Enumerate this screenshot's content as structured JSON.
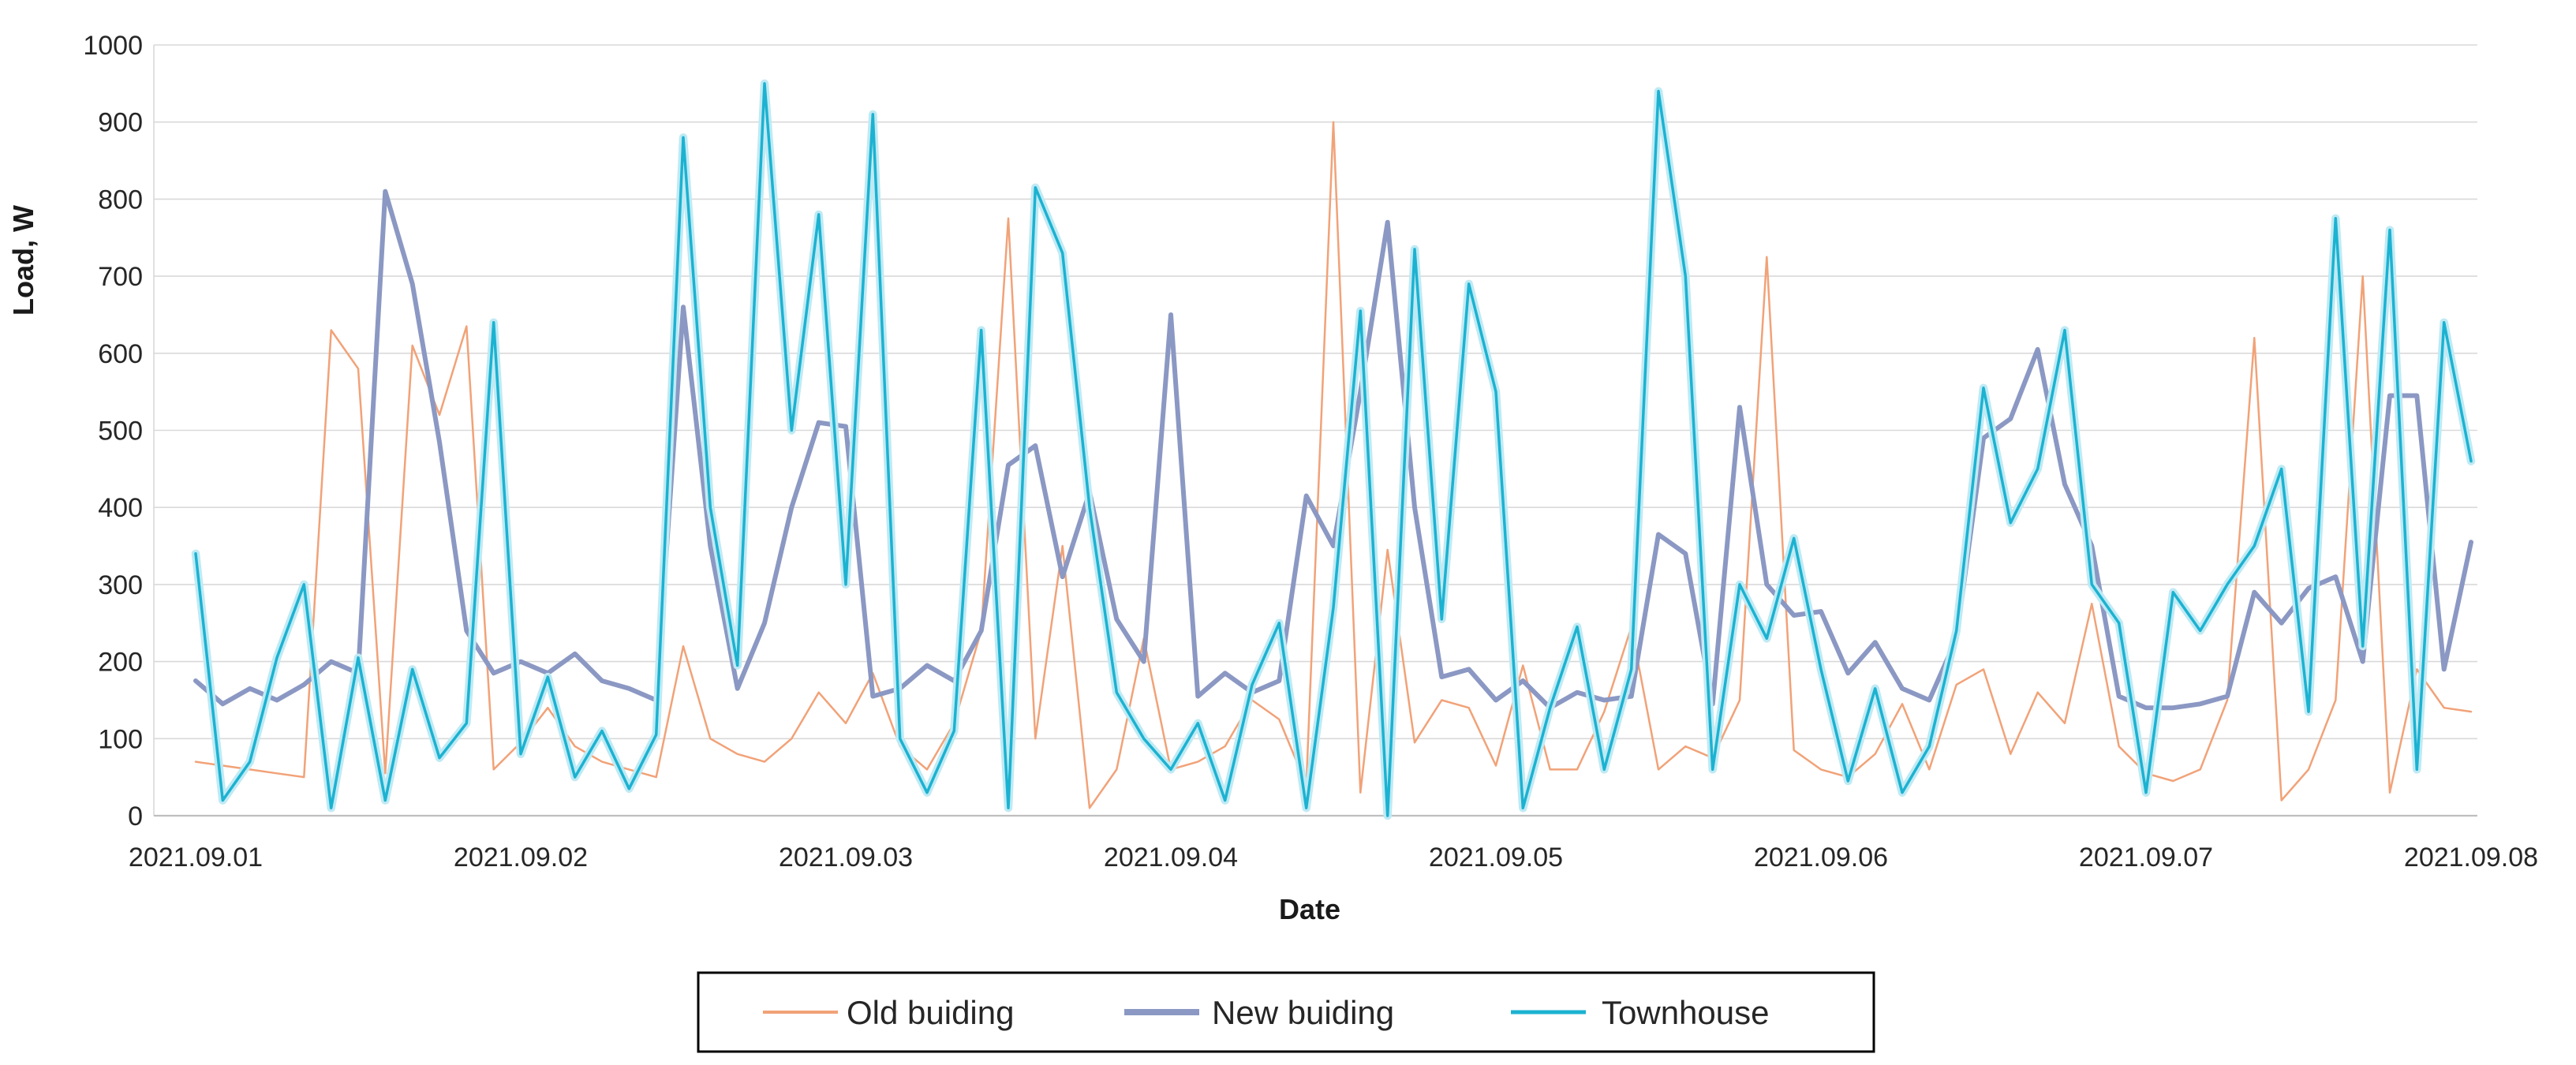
{
  "chart_data": {
    "type": "line",
    "title": "",
    "xlabel": "Date",
    "ylabel": "Load, W",
    "ylim": [
      0,
      1000
    ],
    "ytick_step": 100,
    "grid": true,
    "legend_position": "bottom",
    "x_tick_labels": [
      "2021.09.01",
      "2021.09.02",
      "2021.09.03",
      "2021.09.04",
      "2021.09.05",
      "2021.09.06",
      "2021.09.07",
      "2021.09.08"
    ],
    "points_per_day": 12,
    "colors": {
      "grid": "#d9d9d9",
      "axis": "#bfbfbf",
      "text": "#262626",
      "legend_border": "#000000"
    },
    "series": [
      {
        "name": "Old buiding",
        "color": "#F1A278",
        "width": 2.5,
        "values": [
          70,
          65,
          60,
          55,
          50,
          630,
          580,
          55,
          610,
          520,
          635,
          60,
          95,
          140,
          90,
          70,
          60,
          50,
          220,
          100,
          80,
          70,
          100,
          160,
          120,
          185,
          90,
          60,
          120,
          240,
          775,
          100,
          350,
          10,
          60,
          230,
          60,
          70,
          90,
          150,
          125,
          40,
          900,
          30,
          345,
          95,
          150,
          140,
          65,
          195,
          60,
          60,
          135,
          245,
          60,
          90,
          75,
          150,
          725,
          85,
          60,
          50,
          80,
          145,
          60,
          170,
          190,
          80,
          160,
          120,
          275,
          90,
          55,
          45,
          60,
          150,
          620,
          20,
          60,
          150,
          700,
          30,
          190,
          140,
          135
        ]
      },
      {
        "name": "New buiding",
        "color": "#8B98C3",
        "width": 6,
        "values": [
          175,
          145,
          165,
          150,
          170,
          200,
          185,
          810,
          690,
          485,
          240,
          185,
          200,
          185,
          210,
          175,
          165,
          150,
          660,
          350,
          165,
          250,
          400,
          510,
          505,
          155,
          165,
          195,
          175,
          240,
          455,
          480,
          310,
          420,
          255,
          200,
          650,
          155,
          185,
          160,
          175,
          415,
          350,
          550,
          770,
          400,
          180,
          190,
          150,
          175,
          140,
          160,
          150,
          155,
          365,
          340,
          145,
          530,
          300,
          260,
          265,
          185,
          225,
          165,
          150,
          230,
          490,
          515,
          605,
          430,
          350,
          155,
          140,
          140,
          145,
          155,
          290,
          250,
          295,
          310,
          200,
          545,
          545,
          190,
          355
        ]
      },
      {
        "name": "Townhouse",
        "color": "#1CB2D1",
        "halo": "#BFEAF4",
        "width": 3.5,
        "values": [
          340,
          20,
          70,
          205,
          300,
          10,
          205,
          20,
          190,
          75,
          120,
          640,
          80,
          180,
          50,
          110,
          35,
          105,
          880,
          400,
          195,
          950,
          500,
          780,
          300,
          910,
          100,
          30,
          110,
          630,
          10,
          815,
          730,
          400,
          160,
          100,
          60,
          120,
          20,
          170,
          250,
          10,
          270,
          655,
          0,
          735,
          255,
          690,
          550,
          10,
          140,
          245,
          60,
          190,
          940,
          700,
          60,
          300,
          230,
          360,
          190,
          45,
          165,
          30,
          90,
          240,
          555,
          380,
          450,
          630,
          300,
          250,
          30,
          290,
          240,
          300,
          350,
          450,
          135,
          775,
          220,
          760,
          60,
          640,
          460
        ]
      }
    ]
  }
}
